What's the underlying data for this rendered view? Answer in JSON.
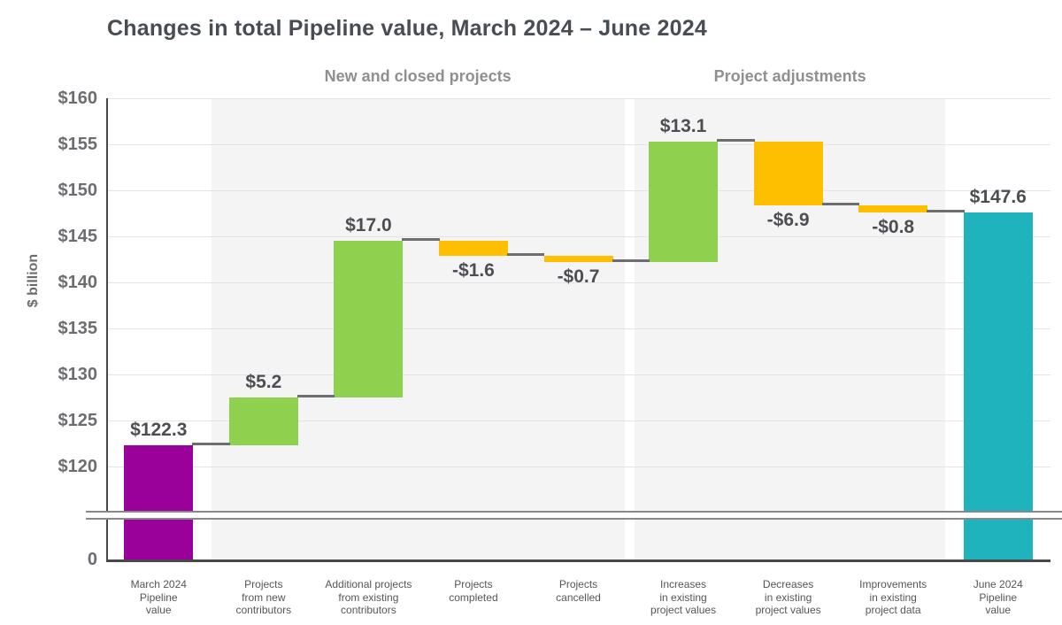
{
  "header": {
    "title": "Changes in total Pipeline value, March 2024 – June 2024"
  },
  "y_axis": {
    "label": "$ billion",
    "tick_labels": [
      "$160",
      "$155",
      "$150",
      "$145",
      "$140",
      "$135",
      "$130",
      "$125",
      "$120"
    ],
    "tick_values": [
      160,
      155,
      150,
      145,
      140,
      135,
      130,
      125,
      120
    ],
    "origin_label": "0",
    "has_axis_break": true
  },
  "chart_data": {
    "type": "waterfall",
    "title": "Changes in total Pipeline value, March 2024 – June 2024",
    "ylabel": "$ billion",
    "ylim_main": [
      120,
      160
    ],
    "y_tick_step": 5,
    "grid": true,
    "axis_break": {
      "between": [
        0,
        120
      ]
    },
    "sections": [
      {
        "label": "New and closed projects",
        "start_index": 1,
        "end_index": 4
      },
      {
        "label": "Project adjustments",
        "start_index": 5,
        "end_index": 7
      }
    ],
    "categories": [
      "March 2024 Pipeline value",
      "Projects from new contributors",
      "Additional projects from existing contributors",
      "Projects completed",
      "Projects cancelled",
      "Increases in existing project values",
      "Decreases in existing project values",
      "Improvements in existing project data",
      "June 2024 Pipeline value"
    ],
    "bars": [
      {
        "category_lines": [
          "March 2024",
          "Pipeline",
          "value"
        ],
        "value": 122.3,
        "display": "$122.3",
        "role": "total_start",
        "color_key": "purple",
        "label_position": "above"
      },
      {
        "category_lines": [
          "Projects",
          "from new",
          "contributors"
        ],
        "value": 5.2,
        "display": "$5.2",
        "role": "increase",
        "color_key": "green",
        "label_position": "above"
      },
      {
        "category_lines": [
          "Additional projects",
          "from existing",
          "contributors"
        ],
        "value": 17.0,
        "display": "$17.0",
        "role": "increase",
        "color_key": "green",
        "label_position": "above"
      },
      {
        "category_lines": [
          "Projects",
          "completed"
        ],
        "value": -1.6,
        "display": "-$1.6",
        "role": "decrease",
        "color_key": "orange",
        "label_position": "below"
      },
      {
        "category_lines": [
          "Projects",
          "cancelled"
        ],
        "value": -0.7,
        "display": "-$0.7",
        "role": "decrease",
        "color_key": "orange",
        "label_position": "below"
      },
      {
        "category_lines": [
          "Increases",
          "in existing",
          "project values"
        ],
        "value": 13.1,
        "display": "$13.1",
        "role": "increase",
        "color_key": "green",
        "label_position": "above"
      },
      {
        "category_lines": [
          "Decreases",
          "in existing",
          "project values"
        ],
        "value": -6.9,
        "display": "-$6.9",
        "role": "decrease",
        "color_key": "orange",
        "label_position": "below"
      },
      {
        "category_lines": [
          "Improvements",
          "in existing",
          "project data"
        ],
        "value": -0.8,
        "display": "-$0.8",
        "role": "decrease",
        "color_key": "orange",
        "label_position": "below"
      },
      {
        "category_lines": [
          "June 2024",
          "Pipeline",
          "value"
        ],
        "value": 147.6,
        "display": "$147.6",
        "role": "total_end",
        "color_key": "teal",
        "label_position": "above"
      }
    ],
    "cumulative": [
      122.3,
      127.5,
      144.5,
      142.9,
      142.2,
      155.3,
      148.4,
      147.6,
      147.6
    ]
  },
  "colors": {
    "purple": "#9A009A",
    "green": "#8FD14F",
    "orange": "#FDBF00",
    "teal": "#1FB3BE",
    "title_text": "#474D52",
    "section_text": "#8E8F91",
    "tick_text": "#6C6D70",
    "category_text": "#55565A",
    "data_label_text": "#4D4E53",
    "connector": "#6D6E71",
    "axis_line": "#47484A",
    "gridline": "#E4E4E6",
    "stripe": "#F4F4F5",
    "break_band_border": "#87888A",
    "background": "#FFFFFF"
  }
}
